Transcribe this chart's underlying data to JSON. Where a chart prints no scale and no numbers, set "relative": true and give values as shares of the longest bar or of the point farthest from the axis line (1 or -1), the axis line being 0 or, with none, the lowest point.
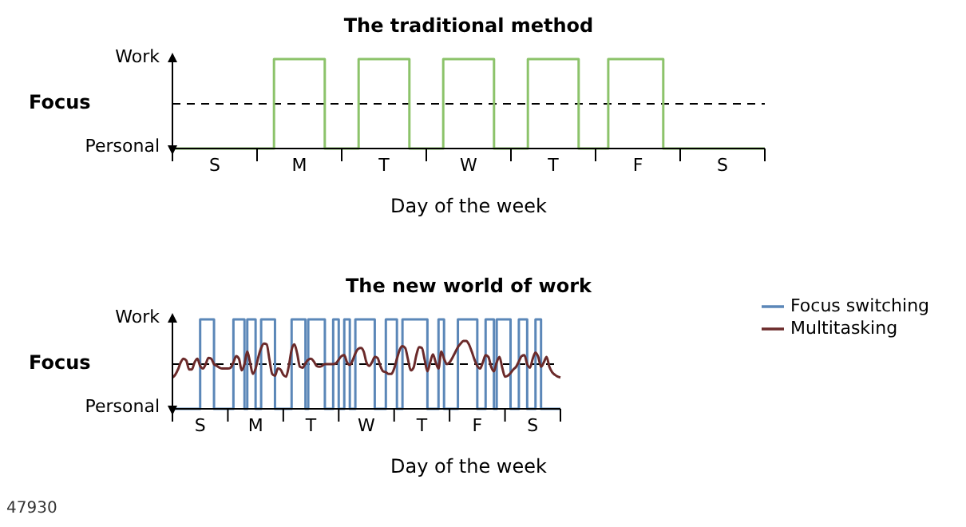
{
  "chart_data": [
    {
      "type": "step",
      "title": "The traditional method",
      "xlabel": "Day of the week",
      "ylabel": "Focus",
      "relative": true,
      "categories": [
        null,
        null,
        null,
        null,
        null,
        null,
        null,
        null,
        null,
        null,
        "S",
        null,
        null,
        null,
        null,
        null,
        null,
        null,
        null,
        null,
        null,
        null,
        null,
        null,
        null,
        null,
        null,
        null,
        null,
        null,
        "M",
        null,
        null,
        null,
        null,
        null,
        null,
        null,
        null,
        null,
        null,
        null,
        null,
        null,
        null,
        null,
        null,
        null,
        null,
        null,
        "T",
        null,
        null,
        null,
        null,
        null,
        null,
        null,
        null,
        null,
        null,
        null,
        null,
        null,
        null,
        null,
        null,
        null,
        null,
        null,
        "W",
        null,
        null,
        null,
        null,
        null,
        null,
        null,
        null,
        null,
        null,
        null,
        null,
        null,
        null,
        null,
        null,
        null,
        null,
        null,
        "T",
        null,
        null,
        null,
        null,
        null,
        null,
        null,
        null,
        null,
        null,
        null,
        null,
        null,
        null,
        null,
        null,
        null,
        null,
        null,
        "F",
        null,
        null,
        null,
        null,
        null,
        null,
        null,
        null,
        null,
        null,
        null,
        null,
        null,
        null,
        null,
        null,
        null,
        null,
        null,
        "S",
        null,
        null,
        null,
        null,
        null,
        null,
        null,
        null,
        null,
        null
      ],
      "legend": false,
      "marker": "none",
      "annotations": [
        "Work",
        "Personal"
      ],
      "ref_lines": [
        {
          "axis": "y",
          "value": 0.5,
          "label": null,
          "color": "#000000",
          "line_style": "dashed"
        }
      ],
      "series": [
        {
          "color": "#8cc36a",
          "values": [
            0,
            0,
            0,
            0,
            0,
            0,
            0,
            0,
            0,
            0,
            0,
            0,
            0,
            0,
            0,
            0,
            0,
            0,
            0,
            0,
            0,
            0,
            0,
            0,
            1,
            1,
            1,
            1,
            1,
            1,
            1,
            1,
            1,
            1,
            1,
            1,
            0,
            0,
            0,
            0,
            0,
            0,
            0,
            0,
            1,
            1,
            1,
            1,
            1,
            1,
            1,
            1,
            1,
            1,
            1,
            1,
            0,
            0,
            0,
            0,
            0,
            0,
            0,
            0,
            1,
            1,
            1,
            1,
            1,
            1,
            1,
            1,
            1,
            1,
            1,
            1,
            0,
            0,
            0,
            0,
            0,
            0,
            0,
            0,
            1,
            1,
            1,
            1,
            1,
            1,
            1,
            1,
            1,
            1,
            1,
            1,
            0,
            0,
            0,
            0,
            0,
            0,
            0,
            1,
            1,
            1,
            1,
            1,
            1,
            1,
            1,
            1,
            1,
            1,
            1,
            1,
            0,
            0,
            0,
            0,
            0,
            0,
            0,
            0,
            0,
            0,
            0,
            0,
            0,
            0,
            0,
            0,
            0,
            0,
            0,
            0,
            0,
            0,
            0,
            0,
            0
          ]
        }
      ]
    },
    {
      "type": "line",
      "title": "The new world of work",
      "xlabel": "Day of the week",
      "ylabel": "Focus",
      "relative": true,
      "categories": [
        null,
        null,
        null,
        null,
        null,
        null,
        null,
        null,
        null,
        null,
        "S",
        null,
        null,
        null,
        null,
        null,
        null,
        null,
        null,
        null,
        null,
        null,
        null,
        null,
        null,
        null,
        null,
        null,
        null,
        null,
        "M",
        null,
        null,
        null,
        null,
        null,
        null,
        null,
        null,
        null,
        null,
        null,
        null,
        null,
        null,
        null,
        null,
        null,
        null,
        null,
        "T",
        null,
        null,
        null,
        null,
        null,
        null,
        null,
        null,
        null,
        null,
        null,
        null,
        null,
        null,
        null,
        null,
        null,
        null,
        null,
        "W",
        null,
        null,
        null,
        null,
        null,
        null,
        null,
        null,
        null,
        null,
        null,
        null,
        null,
        null,
        null,
        null,
        null,
        null,
        null,
        "T",
        null,
        null,
        null,
        null,
        null,
        null,
        null,
        null,
        null,
        null,
        null,
        null,
        null,
        null,
        null,
        null,
        null,
        null,
        null,
        "F",
        null,
        null,
        null,
        null,
        null,
        null,
        null,
        null,
        null,
        null,
        null,
        null,
        null,
        null,
        null,
        null,
        null,
        null,
        null,
        "S",
        null,
        null,
        null,
        null,
        null,
        null,
        null,
        null,
        null,
        null
      ],
      "legend": "top right",
      "marker": "none",
      "annotations": [
        "Work",
        "Personal",
        "47930"
      ],
      "ref_lines": [
        {
          "axis": "y",
          "value": 0.5,
          "label": null,
          "color": "#000000",
          "line_style": "dashed"
        }
      ],
      "series": [
        {
          "name": "Focus switching",
          "type": "step",
          "color": "#5b87b8",
          "values": [
            0,
            0,
            0,
            0,
            0,
            0,
            0,
            0,
            0,
            0,
            1,
            1,
            1,
            1,
            1,
            0,
            0,
            0,
            0,
            0,
            0,
            0,
            1,
            1,
            1,
            1,
            0,
            1,
            1,
            1,
            0,
            0,
            1,
            1,
            1,
            1,
            1,
            0,
            0,
            0,
            0,
            0,
            0,
            1,
            1,
            1,
            1,
            1,
            0,
            1,
            1,
            1,
            1,
            1,
            1,
            0,
            0,
            0,
            1,
            1,
            0,
            0,
            1,
            1,
            0,
            0,
            1,
            1,
            1,
            1,
            1,
            1,
            1,
            0,
            0,
            0,
            0,
            1,
            1,
            1,
            1,
            0,
            0,
            1,
            1,
            1,
            1,
            1,
            1,
            1,
            1,
            1,
            0,
            0,
            0,
            0,
            1,
            1,
            0,
            0,
            0,
            0,
            0,
            1,
            1,
            1,
            1,
            1,
            1,
            1,
            0,
            0,
            0,
            1,
            1,
            1,
            0,
            1,
            1,
            1,
            1,
            1,
            0,
            0,
            0,
            1,
            1,
            1,
            0,
            0,
            0,
            1,
            1,
            0,
            0,
            0,
            0,
            0,
            0,
            0,
            0
          ]
        },
        {
          "name": "Multitasking",
          "color": "#6b2a2a",
          "values": [
            0.35,
            0.38,
            0.44,
            0.52,
            0.56,
            0.54,
            0.44,
            0.44,
            0.52,
            0.56,
            0.48,
            0.45,
            0.5,
            0.57,
            0.56,
            0.5,
            0.48,
            0.46,
            0.45,
            0.45,
            0.45,
            0.46,
            0.52,
            0.59,
            0.56,
            0.43,
            0.5,
            0.64,
            0.52,
            0.39,
            0.45,
            0.58,
            0.68,
            0.73,
            0.72,
            0.55,
            0.39,
            0.37,
            0.45,
            0.44,
            0.38,
            0.36,
            0.48,
            0.66,
            0.72,
            0.62,
            0.47,
            0.46,
            0.51,
            0.55,
            0.56,
            0.53,
            0.48,
            0.47,
            0.48,
            0.5,
            0.5,
            0.5,
            0.5,
            0.51,
            0.55,
            0.59,
            0.6,
            0.52,
            0.49,
            0.54,
            0.62,
            0.67,
            0.68,
            0.64,
            0.52,
            0.48,
            0.52,
            0.58,
            0.57,
            0.48,
            0.42,
            0.41,
            0.39,
            0.39,
            0.45,
            0.56,
            0.66,
            0.7,
            0.68,
            0.55,
            0.43,
            0.46,
            0.6,
            0.69,
            0.68,
            0.55,
            0.42,
            0.52,
            0.61,
            0.52,
            0.45,
            0.64,
            0.56,
            0.5,
            0.52,
            0.57,
            0.63,
            0.69,
            0.73,
            0.76,
            0.76,
            0.72,
            0.64,
            0.55,
            0.48,
            0.45,
            0.52,
            0.6,
            0.58,
            0.47,
            0.42,
            0.52,
            0.58,
            0.46,
            0.36,
            0.37,
            0.4,
            0.44,
            0.47,
            0.53,
            0.59,
            0.6,
            0.5,
            0.46,
            0.56,
            0.63,
            0.58,
            0.47,
            0.52,
            0.58,
            0.47,
            0.41,
            0.38,
            0.36,
            0.35
          ]
        }
      ]
    }
  ]
}
